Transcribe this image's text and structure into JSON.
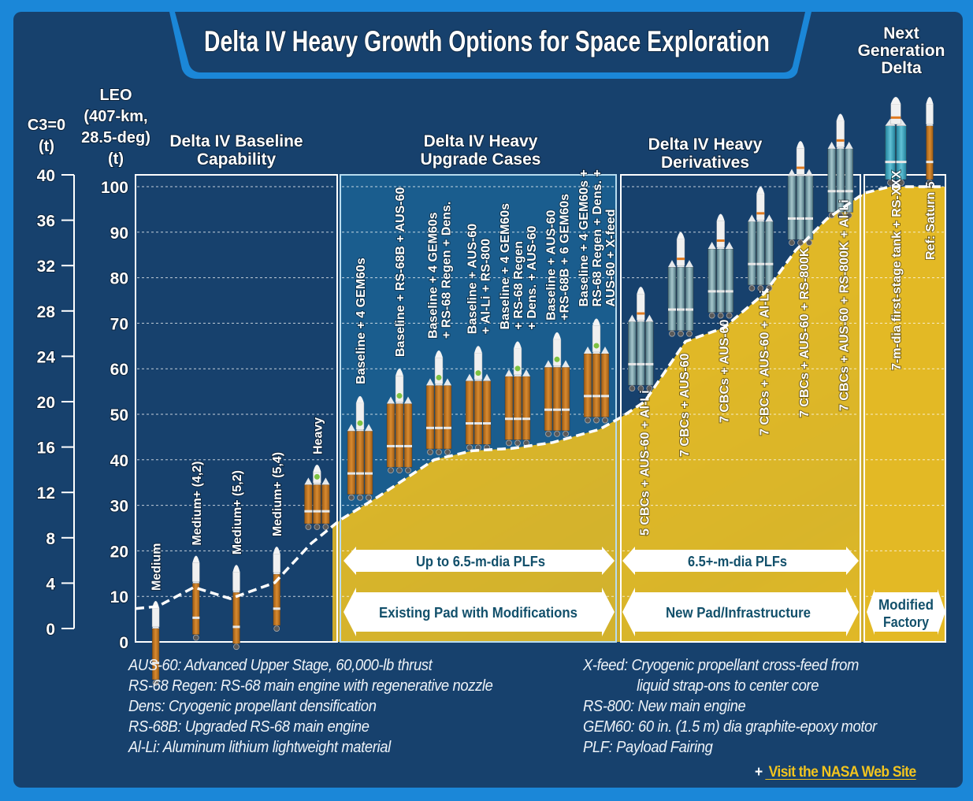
{
  "header": {
    "title": "Delta IV Heavy Growth Options for Space Exploration"
  },
  "axes": {
    "c3_label": [
      "C3=0",
      "(t)"
    ],
    "leo_label": [
      "LEO",
      "(407-km,",
      "28.5-deg)",
      "(t)"
    ],
    "c3_ticks": [
      "0",
      "4",
      "8",
      "12",
      "16",
      "20",
      "24",
      "28",
      "32",
      "36",
      "40"
    ],
    "leo_ticks": [
      "0",
      "10",
      "20",
      "30",
      "40",
      "50",
      "60",
      "70",
      "80",
      "90",
      "100"
    ]
  },
  "sections": [
    {
      "title": [
        "Delta IV Baseline",
        "Capability"
      ]
    },
    {
      "title": [
        "Delta IV Heavy",
        "Upgrade Cases"
      ]
    },
    {
      "title": [
        "Delta IV Heavy",
        "Derivatives"
      ]
    },
    {
      "title": [
        "Next",
        "Generation",
        "Delta"
      ]
    }
  ],
  "banners": {
    "plf_upgrade": "Up to 6.5-m-dia PLFs",
    "plf_derivative": "6.5+-m-dia PLFs",
    "pad_upgrade": "Existing Pad with Modifications",
    "pad_derivative": "New Pad/Infrastructure",
    "factory": [
      "Modified",
      "Factory"
    ]
  },
  "legend": {
    "left": [
      "AUS-60: Advanced Upper Stage, 60,000-lb thrust",
      "RS-68 Regen: RS-68 main engine with regenerative nozzle",
      "Dens: Cryogenic propellant densification",
      "RS-68B: Upgraded RS-68 main engine",
      "Al-Li: Aluminum lithium lightweight material"
    ],
    "right": [
      "X-feed: Cryogenic propellant cross-feed from",
      "liquid strap-ons to center core",
      "RS-800: New main engine",
      "GEM60: 60 in. (1.5 m) dia graphite-epoxy motor",
      "PLF: Payload Fairing"
    ]
  },
  "footer": {
    "link_prefix": "+",
    "link_text": " Visit the NASA Web Site"
  },
  "colors": {
    "page_bg": "#1b87d8",
    "panel_bg": "#17416d",
    "upgrade_panel_bg": "#1a5d8e",
    "capability_fill": "#e8bf24",
    "banner_text": "#12506b",
    "link": "#f2c41e"
  },
  "chart_data": {
    "type": "area",
    "title": "Delta IV Heavy Growth Options for Space Exploration",
    "ylabel": "LEO (407-km, 28.5-deg) (t)",
    "ylabel_secondary": "C3=0 (t)",
    "ylim": [
      0,
      100
    ],
    "ylim_secondary": [
      0,
      40
    ],
    "grid": true,
    "groups": [
      {
        "name": "Delta IV Baseline Capability",
        "vehicles": [
          {
            "label": "Medium",
            "leo_t": 9
          },
          {
            "label": "Medium+ (4,2)",
            "leo_t": 12
          },
          {
            "label": "Medium+ (5,2)",
            "leo_t": 10
          },
          {
            "label": "Medium+ (5,4)",
            "leo_t": 14
          },
          {
            "label": "Heavy",
            "leo_t": 24
          }
        ]
      },
      {
        "name": "Delta IV Heavy Upgrade Cases",
        "vehicles": [
          {
            "label": "Baseline + 4 GEM60s",
            "leo_t": 31
          },
          {
            "label": "Baseline + RS-68B + AUS-60",
            "leo_t": 37
          },
          {
            "label": "Baseline + 4 GEM60s + RS-68 Regen + Dens.",
            "leo_t": 41
          },
          {
            "label": "Baseline + AUS-60 + Al-Li + RS-800",
            "leo_t": 42
          },
          {
            "label": "Baseline + 4 GEM60s + RS-68 Regen + Dens. + AUS-60",
            "leo_t": 43
          },
          {
            "label": "Baseline + AUS-60 +RS-68B + 6 GEM60s",
            "leo_t": 45
          },
          {
            "label": "Baseline + 4 GEM60s + RS-68 Regen + Dens. + AUS-60 + X-feed",
            "leo_t": 48
          }
        ]
      },
      {
        "name": "Delta IV Heavy Derivatives",
        "vehicles": [
          {
            "label": "5 CBCs + AUS-60 + Al-Li",
            "leo_t": 55
          },
          {
            "label": "7 CBCs + AUS-60",
            "leo_t": 67
          },
          {
            "label": "7 CBCs + AUS-60",
            "leo_t": 71
          },
          {
            "label": "7 CBCs + AUS-60 + Al-Li",
            "leo_t": 77
          },
          {
            "label": "7 CBCs + AUS-60 + RS-800K",
            "leo_t": 87
          },
          {
            "label": "7 CBCs + AUS-60 + RS-800K + Al-Li",
            "leo_t": 93
          }
        ]
      },
      {
        "name": "Next Generation Delta",
        "vehicles": [
          {
            "label": "7-m-dia first-stage tank + RS-XXX",
            "leo_t": 100
          },
          {
            "label": "Ref: Saturn 5",
            "leo_t": 100
          }
        ]
      }
    ],
    "capability_curve": {
      "name": "LEO capability envelope",
      "points": [
        [
          0,
          7.3
        ],
        [
          0.11,
          7.8
        ],
        [
          0.29,
          12
        ],
        [
          0.47,
          9.5
        ],
        [
          0.69,
          13
        ],
        [
          0.87,
          21.6
        ],
        [
          1.0,
          26.8
        ],
        [
          1.14,
          32
        ],
        [
          1.34,
          40
        ],
        [
          1.48,
          42
        ],
        [
          1.62,
          42.5
        ],
        [
          1.77,
          43.8
        ],
        [
          1.94,
          46.7
        ],
        [
          2.0,
          49.3
        ],
        [
          2.1,
          52.8
        ],
        [
          2.27,
          66
        ],
        [
          2.43,
          69
        ],
        [
          2.6,
          76.6
        ],
        [
          2.73,
          86
        ],
        [
          2.86,
          92.9
        ],
        [
          3.0,
          98.6
        ],
        [
          3.32,
          100
        ],
        [
          4.0,
          100
        ]
      ]
    }
  }
}
